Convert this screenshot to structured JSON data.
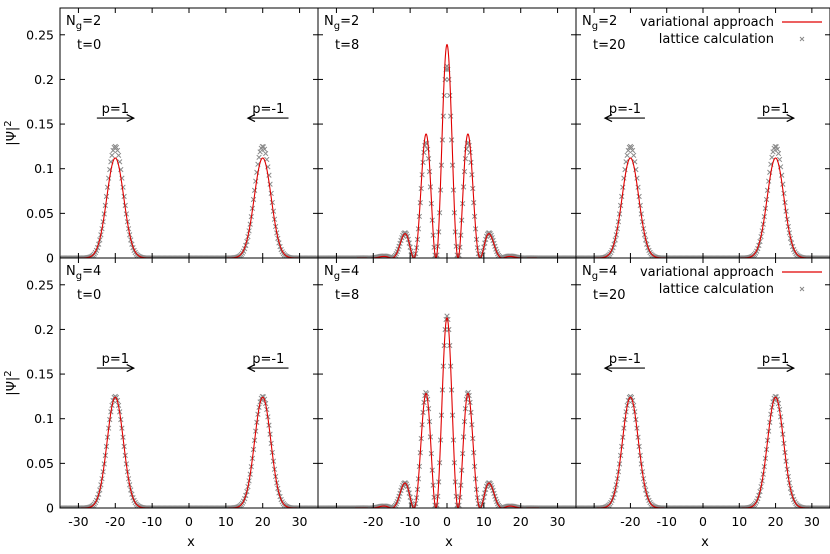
{
  "chart_data": {
    "type": "line",
    "x_axis": {
      "label": "x",
      "range": [
        -35,
        35
      ],
      "ticks": [
        -30,
        -20,
        -10,
        0,
        10,
        20,
        30
      ]
    },
    "y_axis": {
      "label": "|Ψ|",
      "label_sup": "2",
      "range": [
        0,
        0.28
      ],
      "ticks": [
        0,
        0.05,
        0.1,
        0.15,
        0.2,
        0.25
      ],
      "tick_labels": [
        "0",
        "0.05",
        "0.1",
        "0.15",
        "0.2",
        "0.25"
      ]
    },
    "legend": {
      "placement": "top-right",
      "entries": [
        {
          "name": "variational approach",
          "color": "#e00000",
          "style": "line"
        },
        {
          "name": "lattice calculation",
          "color": "#888888",
          "style": "cross"
        }
      ]
    },
    "panels": [
      {
        "row": 0,
        "col": 0,
        "Ng": "2",
        "t": "t=0",
        "arrows": [
          {
            "label": "p=1",
            "x_from": -25,
            "x_to": -15,
            "y": 0.15
          },
          {
            "label": "p=-1",
            "x_from": 27,
            "x_to": 16,
            "y": 0.15
          }
        ],
        "series": [
          {
            "name": "variational approach",
            "centers": [
              -20,
              20
            ],
            "peak": 0.112,
            "sigma": 2.3
          },
          {
            "name": "lattice calculation",
            "centers": [
              -20,
              20
            ],
            "peak": 0.125,
            "sigma": 2.2
          }
        ]
      },
      {
        "row": 0,
        "col": 1,
        "Ng": "2",
        "t": "t=8",
        "arrows": [],
        "series": [
          {
            "name": "variational approach",
            "envelope_peak": 0.239,
            "envelope_sigma": 5.6,
            "fringe_period": 6.0
          },
          {
            "name": "lattice calculation",
            "envelope_peak": 0.215,
            "envelope_sigma": 5.8,
            "fringe_period": 6.0
          }
        ]
      },
      {
        "row": 0,
        "col": 2,
        "Ng": "2",
        "t": "t=20",
        "arrows": [
          {
            "label": "p=-1",
            "x_from": -16,
            "x_to": -27,
            "y": 0.15
          },
          {
            "label": "p=1",
            "x_from": 15,
            "x_to": 25,
            "y": 0.15
          }
        ],
        "series": [
          {
            "name": "variational approach",
            "centers": [
              -20,
              20
            ],
            "peak": 0.112,
            "sigma": 2.3
          },
          {
            "name": "lattice calculation",
            "centers": [
              -20,
              20
            ],
            "peak": 0.125,
            "sigma": 2.2
          }
        ]
      },
      {
        "row": 1,
        "col": 0,
        "Ng": "4",
        "t": "t=0",
        "arrows": [
          {
            "label": "p=1",
            "x_from": -25,
            "x_to": -15,
            "y": 0.15
          },
          {
            "label": "p=-1",
            "x_from": 27,
            "x_to": 16,
            "y": 0.15
          }
        ],
        "series": [
          {
            "name": "variational approach",
            "centers": [
              -20,
              20
            ],
            "peak": 0.124,
            "sigma": 2.2
          },
          {
            "name": "lattice calculation",
            "centers": [
              -20,
              20
            ],
            "peak": 0.125,
            "sigma": 2.2
          }
        ]
      },
      {
        "row": 1,
        "col": 1,
        "Ng": "4",
        "t": "t=8",
        "arrows": [],
        "series": [
          {
            "name": "variational approach",
            "envelope_peak": 0.213,
            "envelope_sigma": 5.8,
            "fringe_period": 6.0
          },
          {
            "name": "lattice calculation",
            "envelope_peak": 0.215,
            "envelope_sigma": 5.8,
            "fringe_period": 6.0
          }
        ]
      },
      {
        "row": 1,
        "col": 2,
        "Ng": "4",
        "t": "t=20",
        "arrows": [
          {
            "label": "p=-1",
            "x_from": -16,
            "x_to": -27,
            "y": 0.15
          },
          {
            "label": "p=1",
            "x_from": 15,
            "x_to": 25,
            "y": 0.15
          }
        ],
        "series": [
          {
            "name": "variational approach",
            "centers": [
              -20,
              20
            ],
            "peak": 0.124,
            "sigma": 2.2
          },
          {
            "name": "lattice calculation",
            "centers": [
              -20,
              20
            ],
            "peak": 0.125,
            "sigma": 2.2
          }
        ]
      }
    ]
  }
}
